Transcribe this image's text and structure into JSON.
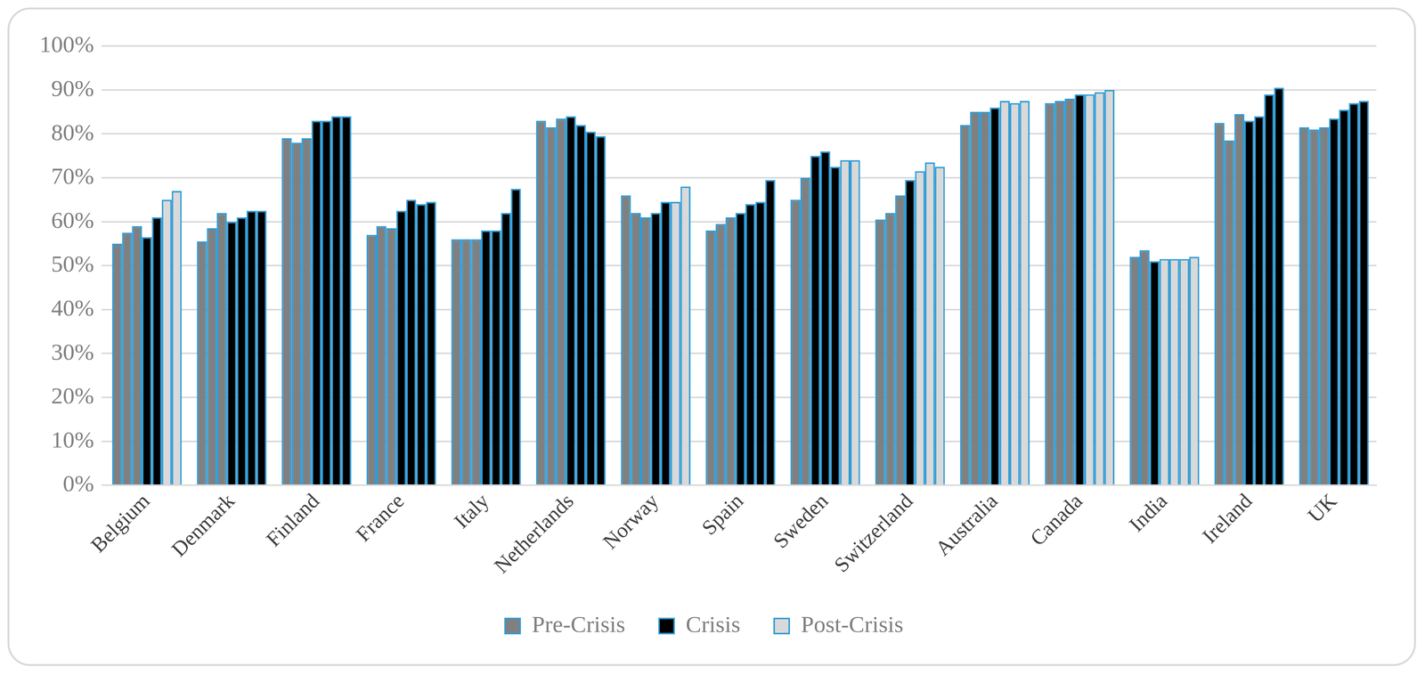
{
  "chart_data": {
    "type": "bar",
    "categories": [
      "Belgium",
      "Denmark",
      "Finland",
      "France",
      "Italy",
      "Netherlands",
      "Norway",
      "Spain",
      "Sweden",
      "Switzerland",
      "Australia",
      "Canada",
      "India",
      "Ireland",
      "UK"
    ],
    "series": [
      {
        "name": "Pre-Crisis",
        "color": "#808080",
        "values": [
          [
            55,
            57.5,
            59,
            null,
            null,
            null,
            null
          ],
          [
            55.5,
            58.5,
            62,
            null,
            null,
            null,
            null
          ],
          [
            79,
            78,
            79,
            null,
            null,
            null,
            null
          ],
          [
            57,
            59,
            58.5,
            null,
            null,
            null,
            null
          ],
          [
            56,
            56,
            56,
            null,
            null,
            null,
            null
          ],
          [
            83,
            81.5,
            83.5,
            null,
            null,
            null,
            null
          ],
          [
            66,
            62,
            61,
            null,
            null,
            null,
            null
          ],
          [
            58,
            59.5,
            61,
            null,
            null,
            null,
            null
          ],
          [
            65,
            70,
            null,
            null,
            null,
            null,
            null
          ],
          [
            60.5,
            62,
            66,
            null,
            null,
            null,
            null
          ],
          [
            82,
            85,
            85,
            null,
            null,
            null,
            null
          ],
          [
            87,
            87.5,
            88,
            null,
            null,
            null,
            null
          ],
          [
            52,
            53.5,
            null,
            null,
            null,
            null,
            null
          ],
          [
            82.5,
            78.5,
            84.5,
            null,
            null,
            null,
            null
          ],
          [
            81.5,
            81,
            81.5,
            null,
            null,
            null,
            null
          ]
        ]
      },
      {
        "name": "Crisis",
        "color": "#000000",
        "values": [
          [
            null,
            null,
            null,
            56.5,
            61,
            null,
            null
          ],
          [
            null,
            null,
            null,
            60,
            61,
            62.5,
            62.5
          ],
          [
            null,
            null,
            null,
            83,
            83,
            84,
            84
          ],
          [
            null,
            null,
            null,
            62.5,
            65,
            64,
            64.5
          ],
          [
            null,
            null,
            null,
            58,
            58,
            62,
            67.5
          ],
          [
            null,
            null,
            null,
            84,
            82,
            80.5,
            79.5
          ],
          [
            null,
            null,
            null,
            62,
            64.5,
            null,
            null
          ],
          [
            null,
            null,
            null,
            62,
            64,
            64.5,
            69.5
          ],
          [
            null,
            null,
            75,
            76,
            72.5,
            null,
            null
          ],
          [
            null,
            null,
            null,
            69.5,
            null,
            null,
            null
          ],
          [
            null,
            null,
            null,
            86,
            null,
            null,
            null
          ],
          [
            null,
            null,
            null,
            89,
            null,
            null,
            null
          ],
          [
            null,
            null,
            51,
            null,
            null,
            null,
            null
          ],
          [
            null,
            null,
            null,
            83,
            84,
            89,
            90.5
          ],
          [
            null,
            null,
            null,
            83.5,
            85.5,
            87,
            87.5
          ]
        ]
      },
      {
        "name": "Post-Crisis",
        "color": "#d9d9d9",
        "values": [
          [
            null,
            null,
            null,
            null,
            null,
            65,
            67
          ],
          [
            null,
            null,
            null,
            null,
            null,
            null,
            null
          ],
          [
            null,
            null,
            null,
            null,
            null,
            null,
            null
          ],
          [
            null,
            null,
            null,
            null,
            null,
            null,
            null
          ],
          [
            null,
            null,
            null,
            null,
            null,
            null,
            null
          ],
          [
            null,
            null,
            null,
            null,
            null,
            null,
            null
          ],
          [
            null,
            null,
            null,
            null,
            null,
            64.5,
            68
          ],
          [
            null,
            null,
            null,
            null,
            null,
            null,
            null
          ],
          [
            null,
            null,
            null,
            null,
            null,
            74,
            74
          ],
          [
            null,
            null,
            null,
            null,
            71.5,
            73.5,
            72.5
          ],
          [
            null,
            null,
            null,
            null,
            87.5,
            87,
            87.5
          ],
          [
            null,
            null,
            null,
            null,
            89,
            89.5,
            90
          ],
          [
            null,
            null,
            null,
            51.5,
            51.5,
            51.5,
            52
          ],
          [
            null,
            null,
            null,
            null,
            null,
            null,
            null
          ],
          [
            null,
            null,
            null,
            null,
            null,
            null,
            null
          ]
        ]
      }
    ],
    "ylim": [
      0,
      100
    ],
    "yticks": [
      {
        "value": 0,
        "label": "0%"
      },
      {
        "value": 10,
        "label": "10%"
      },
      {
        "value": 20,
        "label": "20%"
      },
      {
        "value": 30,
        "label": "30%"
      },
      {
        "value": 40,
        "label": "40%"
      },
      {
        "value": 50,
        "label": "50%"
      },
      {
        "value": 60,
        "label": "60%"
      },
      {
        "value": 70,
        "label": "70%"
      },
      {
        "value": 80,
        "label": "80%"
      },
      {
        "value": 90,
        "label": "90%"
      },
      {
        "value": 100,
        "label": "100%"
      }
    ],
    "grid": true,
    "legend": "bottom"
  }
}
